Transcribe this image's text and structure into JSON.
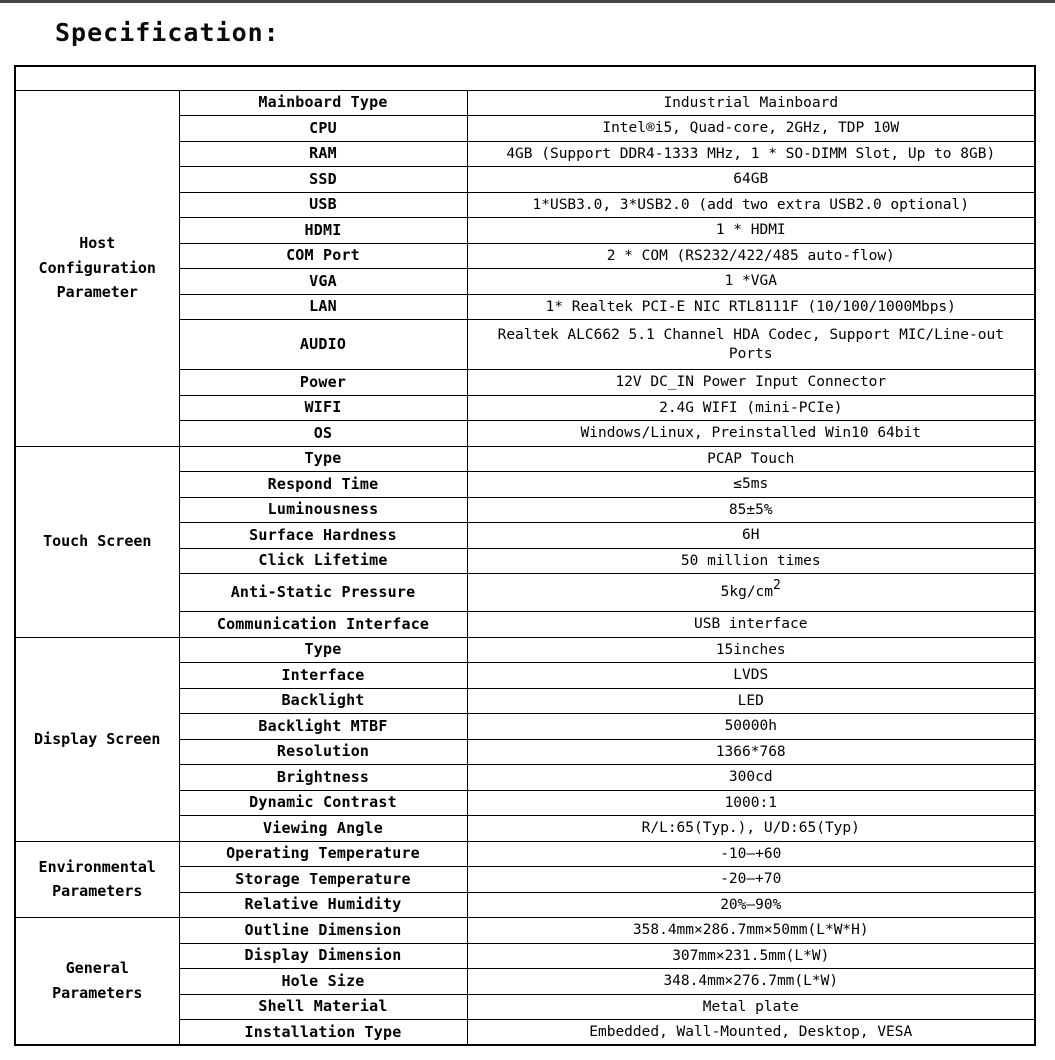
{
  "page": {
    "title": "Specification:"
  },
  "table": {
    "groups": [
      {
        "name": "Host Configuration Parameter",
        "rows": [
          {
            "label": "Mainboard Type",
            "value": "Industrial Mainboard"
          },
          {
            "label": "CPU",
            "value": "Intel®i5, Quad-core, 2GHz, TDP 10W"
          },
          {
            "label": "RAM",
            "value": "4GB (Support DDR4-1333 MHz, 1 * SO-DIMM Slot, Up to 8GB)"
          },
          {
            "label": "SSD",
            "value": "64GB"
          },
          {
            "label": "USB",
            "value": "1*USB3.0, 3*USB2.0 (add two extra USB2.0 optional)"
          },
          {
            "label": "HDMI",
            "value": "1 * HDMI"
          },
          {
            "label": "COM Port",
            "value": "2 * COM (RS232/422/485 auto-flow)"
          },
          {
            "label": "VGA",
            "value": "1 *VGA"
          },
          {
            "label": "LAN",
            "value": "1* Realtek PCI-E NIC RTL8111F (10/100/1000Mbps)"
          },
          {
            "label": "AUDIO",
            "value": "Realtek ALC662 5.1 Channel HDA Codec, Support MIC/Line-out",
            "value2": "Ports"
          },
          {
            "label": "Power",
            "value": "12V DC_IN Power Input Connector"
          },
          {
            "label": "WIFI",
            "value": "2.4G WIFI (mini-PCIe)"
          },
          {
            "label": "OS",
            "value": "Windows/Linux, Preinstalled Win10 64bit"
          }
        ]
      },
      {
        "name": "Touch Screen",
        "rows": [
          {
            "label": "Type",
            "value": "PCAP Touch"
          },
          {
            "label": "Respond Time",
            "value": "≤5ms"
          },
          {
            "label": "Luminousness",
            "value": "85±5%"
          },
          {
            "label": "Surface Hardness",
            "value": "6H"
          },
          {
            "label": "Click Lifetime",
            "value": "50 million times"
          },
          {
            "label": "Anti-Static Pressure",
            "value": "5kg/cm",
            "sup": "2"
          },
          {
            "label": "Communication Interface",
            "value": "USB interface"
          }
        ]
      },
      {
        "name": "Display Screen",
        "rows": [
          {
            "label": "Type",
            "value": "15inches"
          },
          {
            "label": "Interface",
            "value": "LVDS"
          },
          {
            "label": "Backlight",
            "value": "LED"
          },
          {
            "label": "Backlight MTBF",
            "value": "50000h"
          },
          {
            "label": "Resolution",
            "value": "1366*768"
          },
          {
            "label": "Brightness",
            "value": "300cd"
          },
          {
            "label": "Dynamic Contrast",
            "value": "1000:1"
          },
          {
            "label": "Viewing Angle",
            "value": "R/L:65(Typ.), U/D:65(Typ)"
          }
        ]
      },
      {
        "name": "Environmental Parameters",
        "rows": [
          {
            "label": "Operating Temperature",
            "value": "-10—+60"
          },
          {
            "label": "Storage Temperature",
            "value": "-20—+70"
          },
          {
            "label": "Relative Humidity",
            "value": "20%—90%"
          }
        ]
      },
      {
        "name": "General Parameters",
        "rows": [
          {
            "label": "Outline Dimension",
            "value": "358.4mm×286.7mm×50mm(L*W*H)"
          },
          {
            "label": "Display Dimension",
            "value": "307mm×231.5mm(L*W)"
          },
          {
            "label": "Hole Size",
            "value": "348.4mm×276.7mm(L*W)"
          },
          {
            "label": "Shell Material",
            "value": "Metal plate"
          },
          {
            "label": "Installation Type",
            "value": "Embedded, Wall-Mounted, Desktop, VESA"
          }
        ]
      }
    ]
  }
}
